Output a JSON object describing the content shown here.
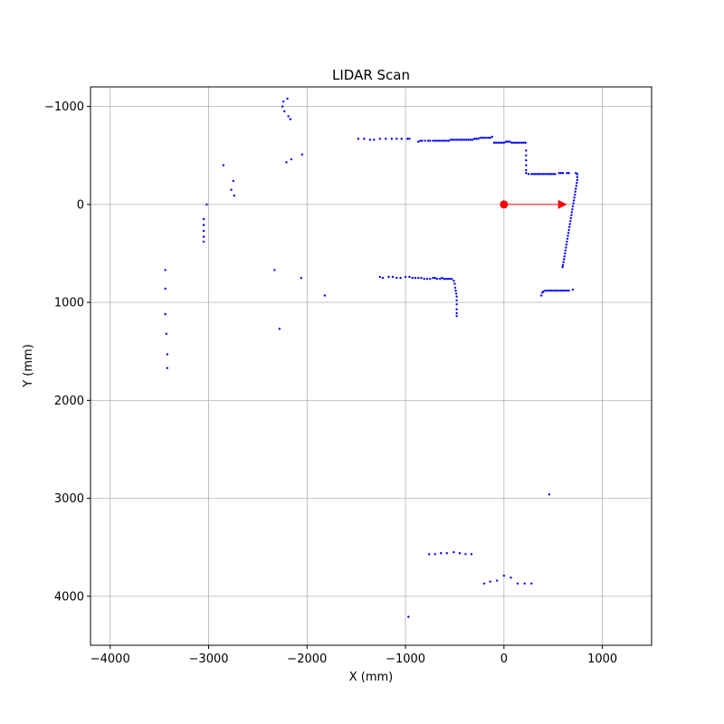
{
  "chart_data": {
    "type": "scatter",
    "title": "LIDAR Scan",
    "xlabel": "X (mm)",
    "ylabel": "Y (mm)",
    "xlim": [
      -4200,
      1500
    ],
    "ylim": [
      -1200,
      4500
    ],
    "y_inverted": true,
    "grid": true,
    "x_ticks": [
      -4000,
      -3000,
      -2000,
      -1000,
      0,
      1000
    ],
    "y_ticks": [
      -1000,
      0,
      1000,
      2000,
      3000,
      4000
    ],
    "x_tick_labels": [
      "−4000",
      "−3000",
      "−2000",
      "−1000",
      "0",
      "1000"
    ],
    "y_tick_labels": [
      "−1000",
      "0",
      "1000",
      "2000",
      "3000",
      "4000"
    ],
    "point_color": "#0000ff",
    "robot_color": "#ff0000",
    "robot": {
      "x": 0,
      "y": 0,
      "heading_end": [
        550,
        0
      ]
    },
    "scan_points": [
      [
        -2240,
        -1050
      ],
      [
        -2200,
        -1080
      ],
      [
        -2250,
        -1000
      ],
      [
        -2230,
        -950
      ],
      [
        -2190,
        -900
      ],
      [
        -2170,
        -870
      ],
      [
        -2210,
        -430
      ],
      [
        -2160,
        -460
      ],
      [
        -2050,
        -510
      ],
      [
        -2850,
        -400
      ],
      [
        -2750,
        -240
      ],
      [
        -2770,
        -150
      ],
      [
        -2740,
        -90
      ],
      [
        -3020,
        0
      ],
      [
        -3050,
        150
      ],
      [
        -3050,
        210
      ],
      [
        -3050,
        270
      ],
      [
        -3050,
        330
      ],
      [
        -3050,
        380
      ],
      [
        -1480,
        -670
      ],
      [
        -1420,
        -670
      ],
      [
        -1360,
        -660
      ],
      [
        -1320,
        -660
      ],
      [
        -1260,
        -670
      ],
      [
        -1200,
        -670
      ],
      [
        -1140,
        -670
      ],
      [
        -1090,
        -670
      ],
      [
        -1040,
        -670
      ],
      [
        -980,
        -670
      ],
      [
        -960,
        -670
      ],
      [
        -870,
        -640
      ],
      [
        -850,
        -650
      ],
      [
        -830,
        -650
      ],
      [
        -800,
        -650
      ],
      [
        -770,
        -650
      ],
      [
        -750,
        -650
      ],
      [
        -720,
        -650
      ],
      [
        -700,
        -650
      ],
      [
        -680,
        -650
      ],
      [
        -660,
        -650
      ],
      [
        -640,
        -650
      ],
      [
        -620,
        -650
      ],
      [
        -600,
        -650
      ],
      [
        -580,
        -650
      ],
      [
        -560,
        -650
      ],
      [
        -540,
        -660
      ],
      [
        -520,
        -660
      ],
      [
        -500,
        -660
      ],
      [
        -480,
        -660
      ],
      [
        -460,
        -660
      ],
      [
        -440,
        -660
      ],
      [
        -420,
        -660
      ],
      [
        -400,
        -660
      ],
      [
        -380,
        -660
      ],
      [
        -360,
        -660
      ],
      [
        -340,
        -660
      ],
      [
        -320,
        -660
      ],
      [
        -300,
        -670
      ],
      [
        -280,
        -670
      ],
      [
        -260,
        -670
      ],
      [
        -240,
        -680
      ],
      [
        -220,
        -680
      ],
      [
        -200,
        -680
      ],
      [
        -180,
        -680
      ],
      [
        -160,
        -680
      ],
      [
        -140,
        -680
      ],
      [
        -120,
        -690
      ],
      [
        -100,
        -630
      ],
      [
        -80,
        -630
      ],
      [
        -60,
        -630
      ],
      [
        -40,
        -630
      ],
      [
        -20,
        -630
      ],
      [
        0,
        -630
      ],
      [
        20,
        -640
      ],
      [
        40,
        -640
      ],
      [
        60,
        -640
      ],
      [
        80,
        -630
      ],
      [
        100,
        -630
      ],
      [
        120,
        -630
      ],
      [
        140,
        -630
      ],
      [
        160,
        -630
      ],
      [
        180,
        -630
      ],
      [
        200,
        -630
      ],
      [
        220,
        -630
      ],
      [
        225,
        -550
      ],
      [
        225,
        -500
      ],
      [
        225,
        -450
      ],
      [
        225,
        -400
      ],
      [
        225,
        -350
      ],
      [
        225,
        -320
      ],
      [
        250,
        -310
      ],
      [
        280,
        -310
      ],
      [
        300,
        -310
      ],
      [
        320,
        -310
      ],
      [
        340,
        -310
      ],
      [
        360,
        -310
      ],
      [
        380,
        -310
      ],
      [
        400,
        -310
      ],
      [
        420,
        -310
      ],
      [
        440,
        -310
      ],
      [
        460,
        -310
      ],
      [
        480,
        -310
      ],
      [
        500,
        -310
      ],
      [
        520,
        -310
      ],
      [
        560,
        -320
      ],
      [
        580,
        -320
      ],
      [
        600,
        -320
      ],
      [
        640,
        -320
      ],
      [
        660,
        -320
      ],
      [
        730,
        -320
      ],
      [
        745,
        -310
      ],
      [
        745,
        -280
      ],
      [
        745,
        -250
      ],
      [
        740,
        -220
      ],
      [
        735,
        -190
      ],
      [
        730,
        -160
      ],
      [
        725,
        -130
      ],
      [
        720,
        -100
      ],
      [
        715,
        -70
      ],
      [
        710,
        -40
      ],
      [
        705,
        -10
      ],
      [
        700,
        20
      ],
      [
        695,
        50
      ],
      [
        690,
        80
      ],
      [
        685,
        110
      ],
      [
        680,
        140
      ],
      [
        675,
        170
      ],
      [
        670,
        200
      ],
      [
        665,
        230
      ],
      [
        660,
        260
      ],
      [
        655,
        290
      ],
      [
        650,
        320
      ],
      [
        645,
        350
      ],
      [
        640,
        380
      ],
      [
        635,
        410
      ],
      [
        630,
        440
      ],
      [
        625,
        470
      ],
      [
        620,
        500
      ],
      [
        615,
        530
      ],
      [
        610,
        560
      ],
      [
        605,
        590
      ],
      [
        600,
        620
      ],
      [
        595,
        640
      ],
      [
        -1260,
        740
      ],
      [
        -1230,
        750
      ],
      [
        -1170,
        740
      ],
      [
        -1130,
        740
      ],
      [
        -1090,
        750
      ],
      [
        -1050,
        750
      ],
      [
        -1000,
        740
      ],
      [
        -960,
        740
      ],
      [
        -930,
        750
      ],
      [
        -900,
        750
      ],
      [
        -870,
        750
      ],
      [
        -840,
        750
      ],
      [
        -810,
        760
      ],
      [
        -780,
        760
      ],
      [
        -750,
        760
      ],
      [
        -720,
        750
      ],
      [
        -700,
        750
      ],
      [
        -680,
        760
      ],
      [
        -650,
        760
      ],
      [
        -630,
        750
      ],
      [
        -610,
        760
      ],
      [
        -590,
        760
      ],
      [
        -570,
        760
      ],
      [
        -550,
        760
      ],
      [
        -530,
        760
      ],
      [
        -510,
        780
      ],
      [
        -500,
        810
      ],
      [
        -495,
        850
      ],
      [
        -490,
        880
      ],
      [
        -485,
        910
      ],
      [
        -480,
        940
      ],
      [
        -480,
        980
      ],
      [
        -480,
        1020
      ],
      [
        -480,
        1070
      ],
      [
        -480,
        1110
      ],
      [
        -480,
        1140
      ],
      [
        380,
        930
      ],
      [
        390,
        900
      ],
      [
        400,
        890
      ],
      [
        420,
        880
      ],
      [
        440,
        880
      ],
      [
        460,
        880
      ],
      [
        480,
        880
      ],
      [
        500,
        880
      ],
      [
        520,
        880
      ],
      [
        540,
        880
      ],
      [
        560,
        880
      ],
      [
        580,
        880
      ],
      [
        600,
        880
      ],
      [
        620,
        880
      ],
      [
        640,
        880
      ],
      [
        660,
        880
      ],
      [
        700,
        870
      ],
      [
        -2330,
        670
      ],
      [
        -2060,
        750
      ],
      [
        -1820,
        930
      ],
      [
        -2280,
        1270
      ],
      [
        -3440,
        670
      ],
      [
        -3440,
        860
      ],
      [
        -3440,
        1120
      ],
      [
        -3430,
        1320
      ],
      [
        -3420,
        1530
      ],
      [
        -3420,
        1670
      ],
      [
        460,
        2960
      ],
      [
        -760,
        3570
      ],
      [
        -700,
        3570
      ],
      [
        -640,
        3560
      ],
      [
        -580,
        3560
      ],
      [
        -510,
        3550
      ],
      [
        -450,
        3560
      ],
      [
        -390,
        3570
      ],
      [
        -330,
        3570
      ],
      [
        -200,
        3870
      ],
      [
        -140,
        3850
      ],
      [
        -70,
        3840
      ],
      [
        0,
        3790
      ],
      [
        70,
        3810
      ],
      [
        140,
        3870
      ],
      [
        210,
        3870
      ],
      [
        280,
        3870
      ],
      [
        -970,
        4210
      ]
    ]
  }
}
